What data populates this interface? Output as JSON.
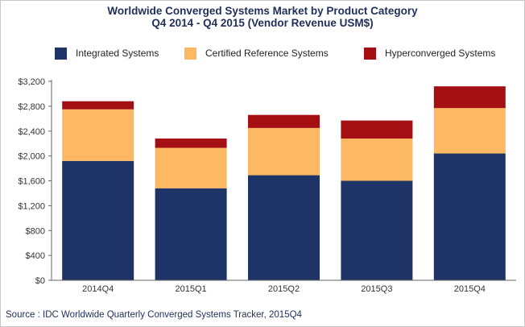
{
  "chart_data": {
    "type": "bar",
    "stacked": true,
    "title_line1": "Worldwide Converged Systems Market by Product Category",
    "title_line2": "Q4 2014 - Q4 2015 (Vendor Revenue USM$)",
    "categories": [
      "2014Q4",
      "2015Q1",
      "2015Q2",
      "2015Q3",
      "2015Q4"
    ],
    "series": [
      {
        "name": "Integrated Systems",
        "color": "#1f3466",
        "values": [
          1920,
          1480,
          1690,
          1600,
          2040
        ]
      },
      {
        "name": "Certified Reference Systems",
        "color": "#fdb863",
        "values": [
          830,
          650,
          760,
          680,
          730
        ]
      },
      {
        "name": "Hyperconverged Systems",
        "color": "#a40f14",
        "values": [
          130,
          150,
          210,
          290,
          350
        ]
      }
    ],
    "ylim": [
      0,
      3200
    ],
    "yticks": [
      0,
      400,
      800,
      1200,
      1600,
      2000,
      2400,
      2800,
      3200
    ],
    "ytick_labels": [
      "$0",
      "$400",
      "$800",
      "$1,200",
      "$1,600",
      "$2,000",
      "$2,400",
      "$2,800",
      "$3,200"
    ],
    "grid": false,
    "legend_position": "top",
    "source": "Source : IDC Worldwide Quarterly Converged Systems Tracker, 2015Q4"
  }
}
